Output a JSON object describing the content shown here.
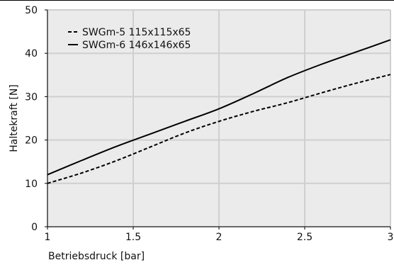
{
  "chart_data": {
    "type": "line",
    "title": "",
    "xlabel": "Betriebsdruck [bar]",
    "ylabel": "Haltekraft [N]",
    "xlim": [
      1,
      3
    ],
    "ylim": [
      0,
      50
    ],
    "x_ticks": [
      "1",
      "1.5",
      "2",
      "2.5",
      "3"
    ],
    "y_ticks": [
      "0",
      "10",
      "20",
      "30",
      "40",
      "50"
    ],
    "grid": true,
    "legend_position": "top-left",
    "x": [
      1,
      1.2,
      1.4,
      1.6,
      1.8,
      2,
      2.2,
      2.4,
      2.6,
      2.8,
      3
    ],
    "series": [
      {
        "name": "SWGm-5 115x115x65",
        "style": "dashed",
        "color": "#000000",
        "values": [
          10,
          12.4,
          15.2,
          18.4,
          21.6,
          24.3,
          26.6,
          28.6,
          30.9,
          33.1,
          35.1
        ]
      },
      {
        "name": "SWGm-6 146x146x65",
        "style": "solid",
        "color": "#000000",
        "values": [
          12,
          15.3,
          18.5,
          21.4,
          24.3,
          27.2,
          30.7,
          34.4,
          37.5,
          40.3,
          43.1
        ]
      }
    ]
  }
}
